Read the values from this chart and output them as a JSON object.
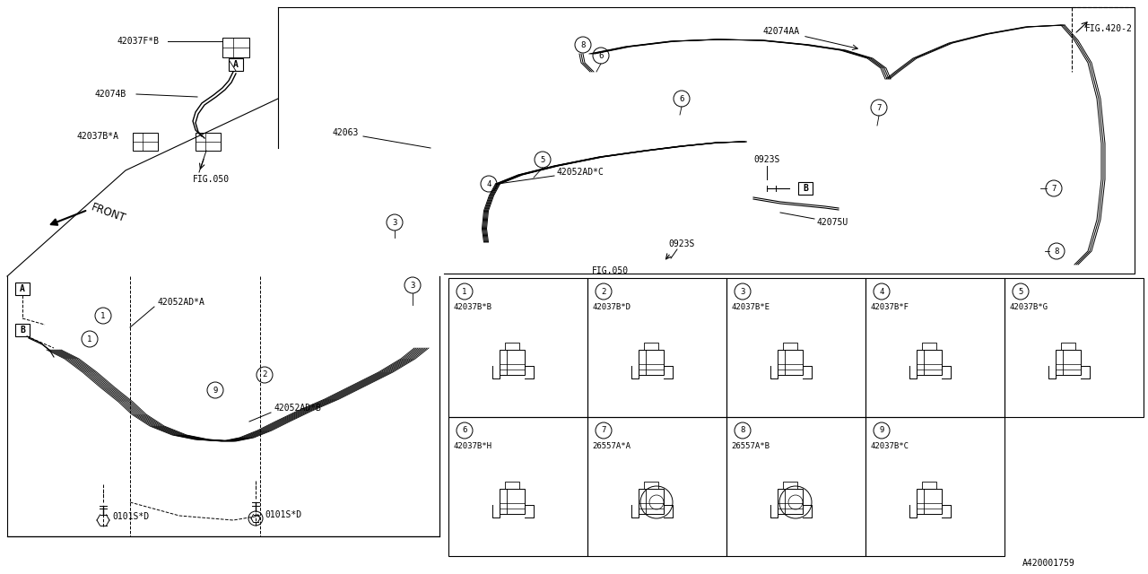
{
  "bg_color": "#ffffff",
  "fig_width": 12.8,
  "fig_height": 6.4,
  "callout_grid": {
    "items": [
      {
        "num": "1",
        "part": "42037B*B"
      },
      {
        "num": "2",
        "part": "42037B*D"
      },
      {
        "num": "3",
        "part": "42037B*E"
      },
      {
        "num": "4",
        "part": "42037B*F"
      },
      {
        "num": "5",
        "part": "42037B*G"
      },
      {
        "num": "6",
        "part": "42037B*H"
      },
      {
        "num": "7",
        "part": "26557A*A"
      },
      {
        "num": "8",
        "part": "26557A*B"
      },
      {
        "num": "9",
        "part": "42037B*C"
      }
    ]
  }
}
